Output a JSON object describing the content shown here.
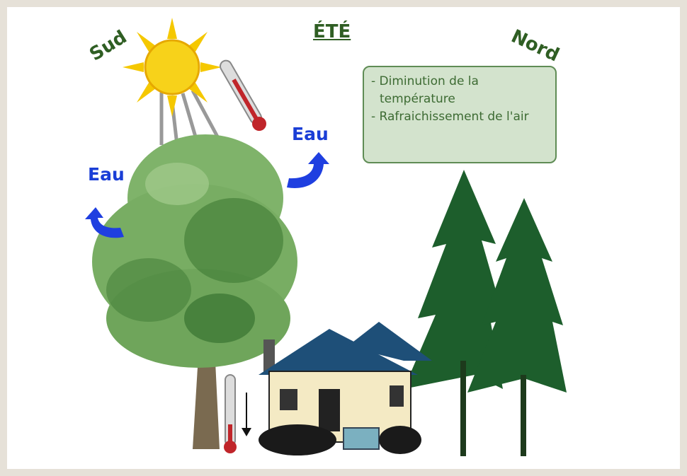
{
  "labels": {
    "south": "Sud",
    "season": "ÉTÉ",
    "north": "Nord",
    "water_left": "Eau",
    "water_right": "Eau"
  },
  "effects": {
    "items": [
      "- Diminution de la température",
      "- Rafraichissement de l'air"
    ]
  }
}
